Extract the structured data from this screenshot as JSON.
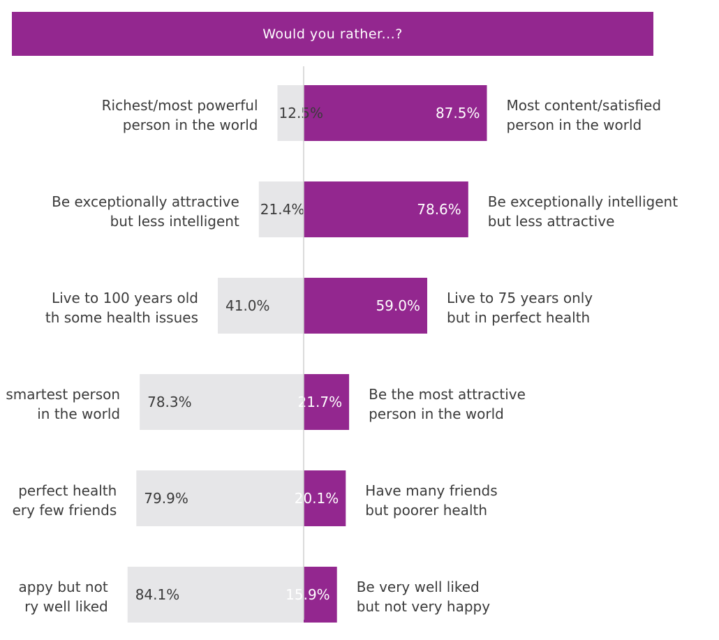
{
  "title": "Would you rather...?",
  "colors": {
    "left": "#e6e6e8",
    "right": "#93278f",
    "axis": "#cfcfcf",
    "text": "#3a3a3a"
  },
  "chart_data": {
    "type": "bar",
    "orientation": "diverging-horizontal",
    "title": "Would you rather...?",
    "xlim": [
      -100,
      100
    ],
    "rows": [
      {
        "left_label": [
          "Richest/most powerful",
          "person in the world"
        ],
        "left_value": 12.5,
        "left_text": "12.5%",
        "right_label": [
          "Most content/satisfied",
          "person in the world"
        ],
        "right_value": 87.5,
        "right_text": "87.5%"
      },
      {
        "left_label": [
          "Be exceptionally attractive",
          "but less intelligent"
        ],
        "left_value": 21.4,
        "left_text": "21.4%",
        "right_label": [
          "Be exceptionally intelligent",
          "but less attractive"
        ],
        "right_value": 78.6,
        "right_text": "78.6%"
      },
      {
        "left_label": [
          "Live to 100 years old",
          "th some health issues"
        ],
        "left_value": 41.0,
        "left_text": "41.0%",
        "right_label": [
          "Live to 75 years only",
          "but in perfect health"
        ],
        "right_value": 59.0,
        "right_text": "59.0%"
      },
      {
        "left_label": [
          "smartest person",
          "in the world"
        ],
        "left_value": 78.3,
        "left_text": "78.3%",
        "right_label": [
          "Be the most attractive",
          "person in the world"
        ],
        "right_value": 21.7,
        "right_text": "21.7%"
      },
      {
        "left_label": [
          "perfect health",
          "ery few friends"
        ],
        "left_value": 79.9,
        "left_text": "79.9%",
        "right_label": [
          "Have many friends",
          "but poorer health"
        ],
        "right_value": 20.1,
        "right_text": "20.1%"
      },
      {
        "left_label": [
          "appy but not",
          "ry well liked"
        ],
        "left_value": 84.1,
        "left_text": "84.1%",
        "right_label": [
          "Be very well liked",
          "but not very happy"
        ],
        "right_value": 15.9,
        "right_text": "15.9%"
      }
    ]
  }
}
